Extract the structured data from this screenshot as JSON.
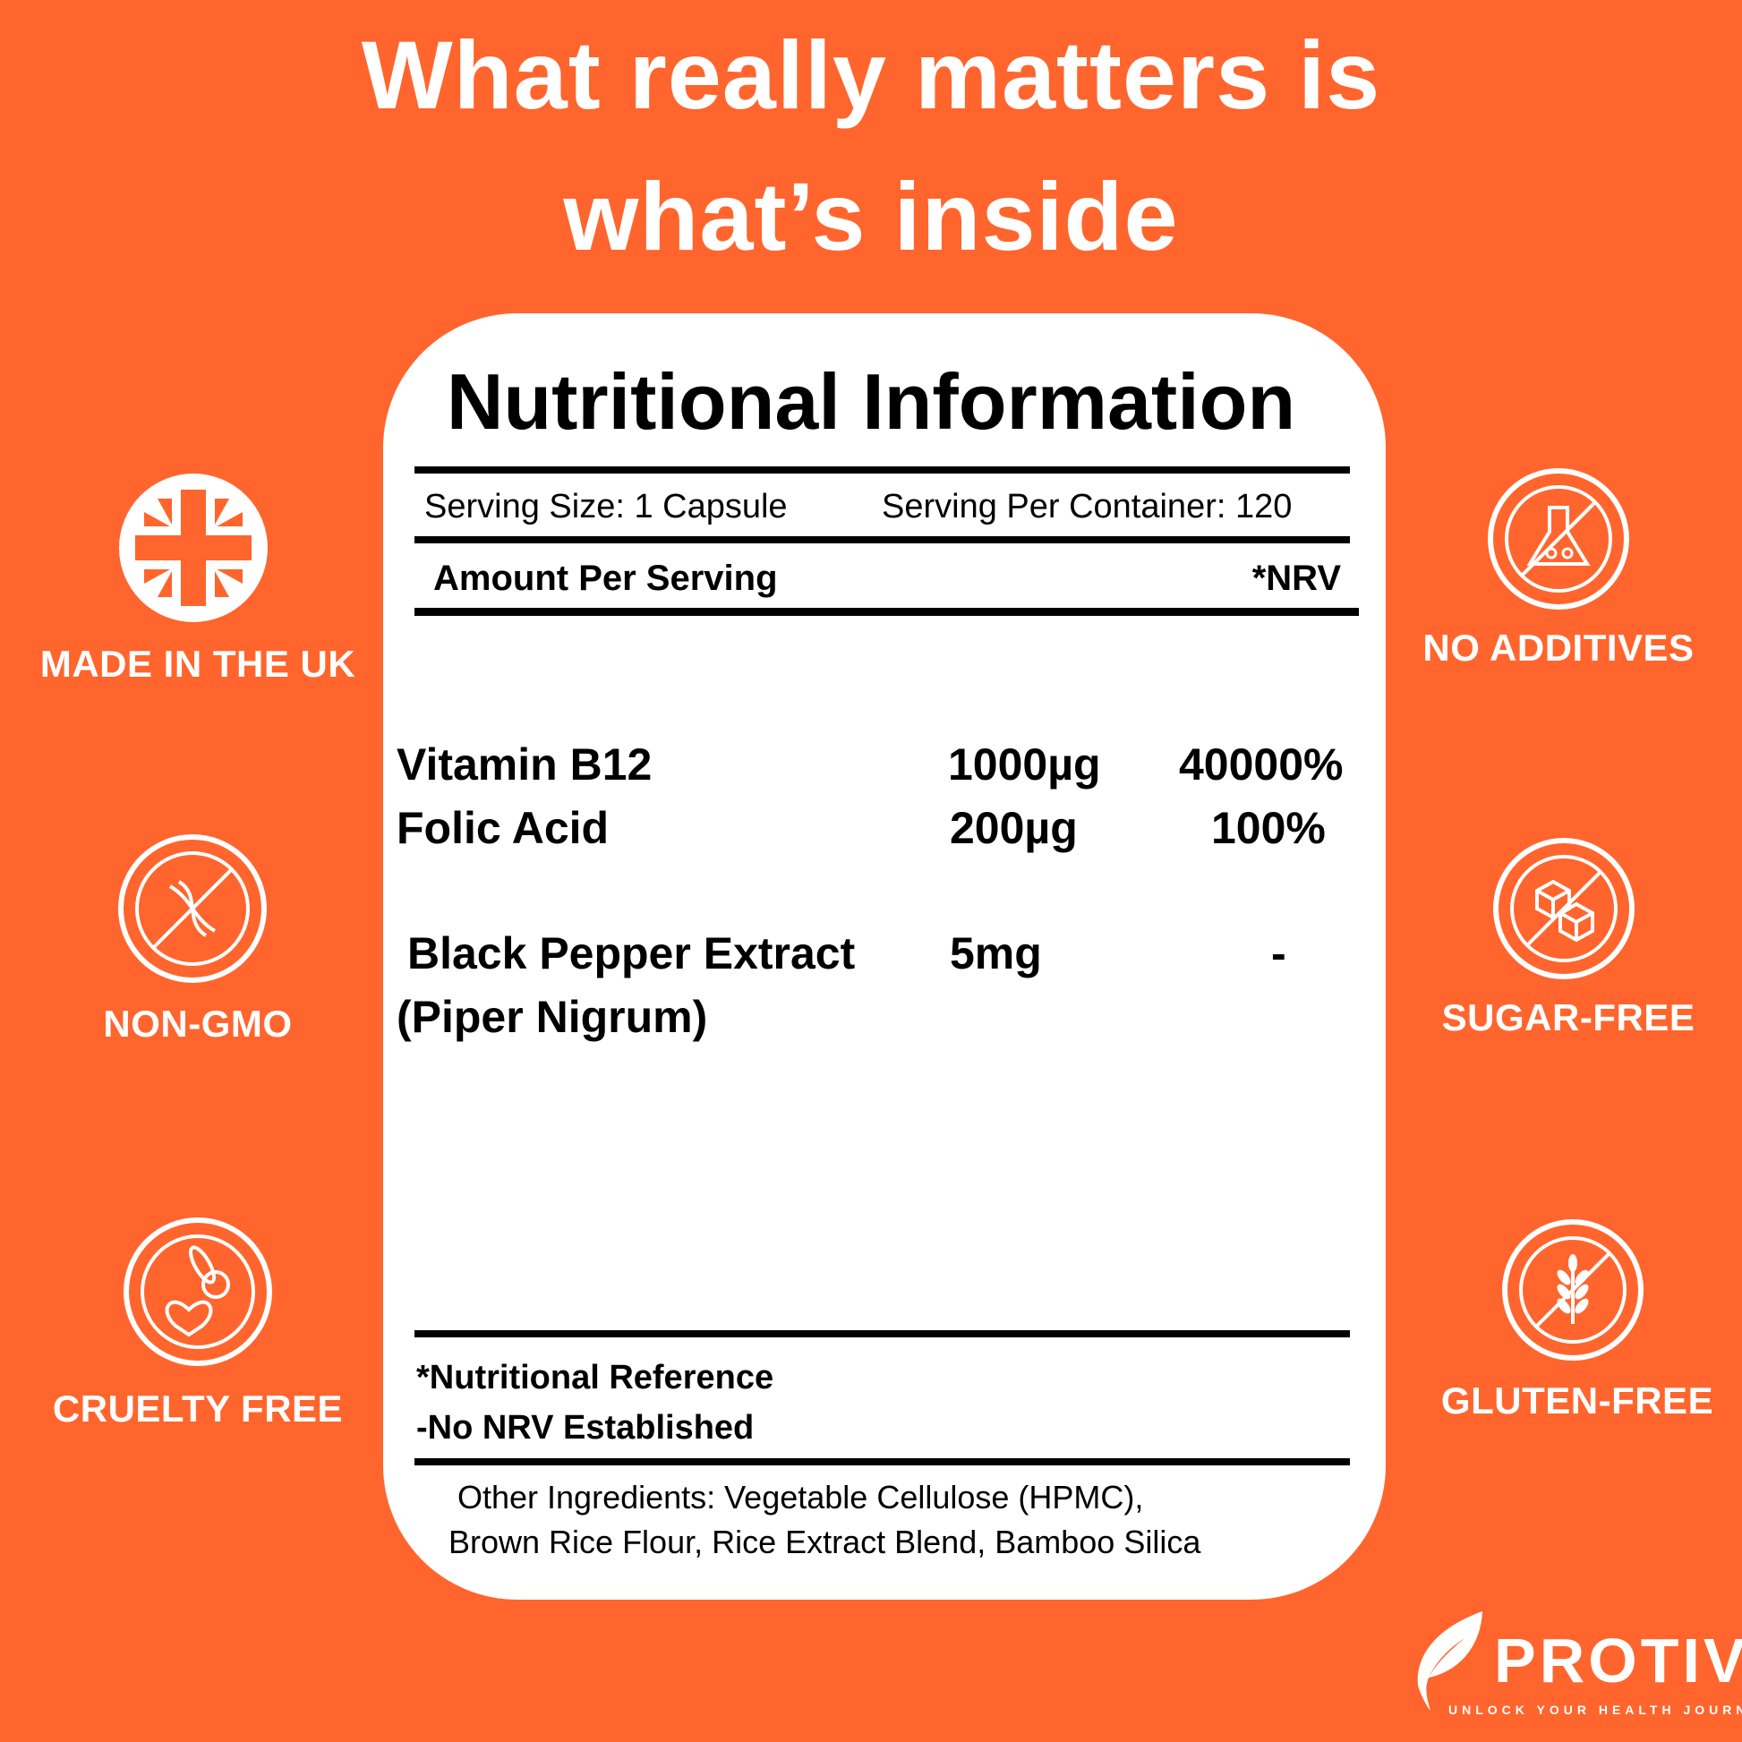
{
  "headline": {
    "line1": "What really matters is",
    "line2": "what’s inside"
  },
  "colors": {
    "background": "#FF652D",
    "card": "#FFFFFF",
    "text": "#000000"
  },
  "panel": {
    "title": "Nutritional Information",
    "serving_size": "Serving Size: 1 Capsule",
    "servings_per_container": "Serving Per Container: 120",
    "amount_header": "Amount Per Serving",
    "nrv_header": "*NRV",
    "rows": [
      {
        "name": "Vitamin B12",
        "amount": "1000µg",
        "nrv": "40000%"
      },
      {
        "name": "Folic Acid",
        "amount": "200µg",
        "nrv": "100%"
      },
      {
        "name": "Black Pepper Extract",
        "name_line2": "(Piper Nigrum)",
        "amount": "5mg",
        "nrv": "-"
      }
    ],
    "footnote1": "*Nutritional Reference",
    "footnote2": "-No NRV Established",
    "other_line1": "Other Ingredients:  Vegetable Cellulose (HPMC),",
    "other_line2": "Brown Rice Flour, Rice Extract Blend, Bamboo Silica"
  },
  "badges": {
    "left": [
      {
        "label": "MADE IN THE UK",
        "icon": "uk-flag-icon"
      },
      {
        "label": "NON-GMO",
        "icon": "no-dna-icon"
      },
      {
        "label": "CRUELTY FREE",
        "icon": "rabbit-heart-icon"
      }
    ],
    "right": [
      {
        "label": "NO ADDITIVES",
        "icon": "no-flask-icon"
      },
      {
        "label": "SUGAR-FREE",
        "icon": "no-sugar-cubes-icon"
      },
      {
        "label": "GLUTEN-FREE",
        "icon": "no-wheat-icon"
      }
    ]
  },
  "brand": {
    "name": "PROTIV",
    "tagline": "UNLOCK YOUR HEALTH JOURNEY"
  }
}
